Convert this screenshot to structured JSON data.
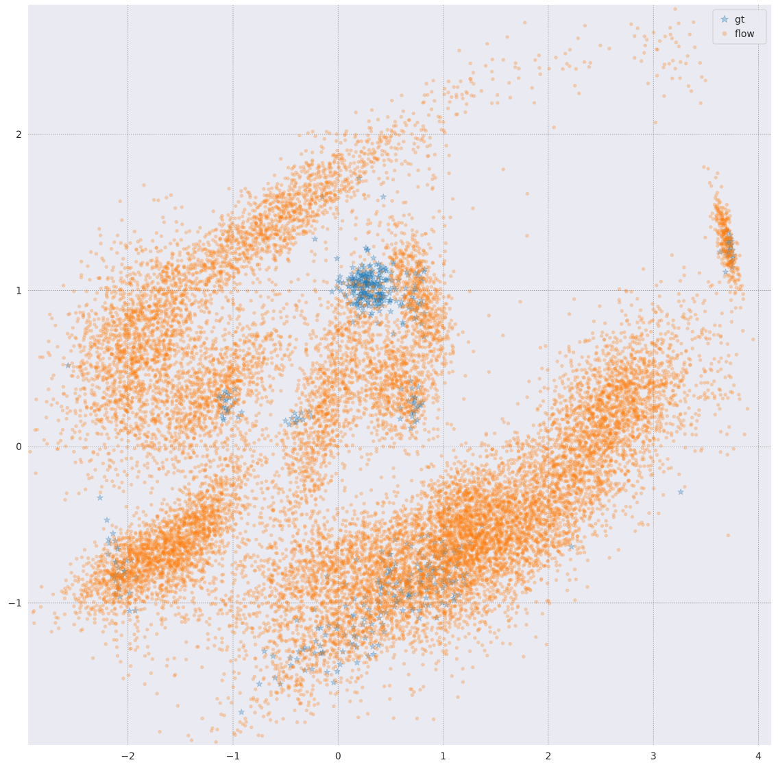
{
  "chart_data": {
    "type": "scatter",
    "title": "",
    "xlabel": "",
    "ylabel": "",
    "xlim": [
      -2.95,
      4.12
    ],
    "ylim": [
      -1.91,
      2.83
    ],
    "xticks": [
      -2,
      -1,
      0,
      1,
      2,
      3,
      4
    ],
    "yticks": [
      -1,
      0,
      1,
      2
    ],
    "xtick_labels": [
      "−2",
      "−1",
      "0",
      "1",
      "2",
      "3",
      "4"
    ],
    "ytick_labels": [
      "−1",
      "0",
      "1",
      "2"
    ],
    "grid": true,
    "legend_position": "top-right",
    "background": "#eaeaf2",
    "series": [
      {
        "name": "gt",
        "marker": "star",
        "color": "#1f77b4",
        "opacity": 0.3,
        "clusters": [
          {
            "center": [
              0.28,
              1.03
            ],
            "spread": [
              0.12,
              0.09
            ],
            "angle": 0,
            "count": 220
          },
          {
            "center": [
              0.72,
              0.95
            ],
            "spread": [
              0.08,
              0.12
            ],
            "angle": -0.3,
            "count": 40
          },
          {
            "center": [
              -1.05,
              0.27
            ],
            "spread": [
              0.06,
              0.05
            ],
            "angle": 0,
            "count": 25
          },
          {
            "center": [
              -0.38,
              0.18
            ],
            "spread": [
              0.05,
              0.04
            ],
            "angle": 0,
            "count": 12
          },
          {
            "center": [
              0.72,
              0.28
            ],
            "spread": [
              0.05,
              0.12
            ],
            "angle": 0,
            "count": 25
          },
          {
            "center": [
              0.55,
              -0.95
            ],
            "spread": [
              0.5,
              0.14
            ],
            "angle": 0.45,
            "count": 130
          },
          {
            "center": [
              0.95,
              -0.75
            ],
            "spread": [
              0.2,
              0.15
            ],
            "angle": 0.5,
            "count": 40
          },
          {
            "center": [
              -2.1,
              -0.75
            ],
            "spread": [
              0.05,
              0.15
            ],
            "angle": 0.3,
            "count": 30
          },
          {
            "center": [
              3.72,
              1.25
            ],
            "spread": [
              0.03,
              0.08
            ],
            "angle": 0,
            "count": 25
          },
          {
            "center": [
              -0.3,
              -1.32
            ],
            "spread": [
              0.2,
              0.05
            ],
            "angle": 0.3,
            "count": 12
          }
        ],
        "points": [
          [
            -2.57,
            0.52
          ],
          [
            -2.2,
            -0.47
          ],
          [
            -1.93,
            -1.05
          ],
          [
            -0.92,
            -1.7
          ],
          [
            -0.75,
            -1.52
          ],
          [
            -0.55,
            -1.52
          ],
          [
            -0.6,
            -1.48
          ],
          [
            3.26,
            -0.29
          ],
          [
            2.22,
            -0.64
          ],
          [
            0.15,
            -1.08
          ],
          [
            0.99,
            -1.0
          ],
          [
            1.1,
            -0.97
          ],
          [
            0.33,
            -1.28
          ],
          [
            -0.15,
            1.6
          ],
          [
            0.2,
            1.72
          ],
          [
            0.43,
            1.6
          ],
          [
            -0.45,
            -1.4
          ],
          [
            0.05,
            1.05
          ],
          [
            -0.22,
            1.33
          ]
        ]
      },
      {
        "name": "flow",
        "marker": "circle",
        "color": "#ff7f0e",
        "opacity": 0.3,
        "clusters": [
          {
            "center": [
              -0.65,
              1.42
            ],
            "spread": [
              0.75,
              0.12
            ],
            "angle": 0.44,
            "count": 1500
          },
          {
            "center": [
              -1.9,
              0.62
            ],
            "spread": [
              0.38,
              0.28
            ],
            "angle": 0.7,
            "count": 1800
          },
          {
            "center": [
              -1.15,
              0.35
            ],
            "spread": [
              0.4,
              0.14
            ],
            "angle": 0.6,
            "count": 900
          },
          {
            "center": [
              -0.1,
              0.28
            ],
            "spread": [
              0.5,
              0.15
            ],
            "angle": 1.1,
            "count": 1100
          },
          {
            "center": [
              0.55,
              0.38
            ],
            "spread": [
              0.2,
              0.18
            ],
            "angle": 0.5,
            "count": 700
          },
          {
            "center": [
              0.78,
              0.97
            ],
            "spread": [
              0.25,
              0.1
            ],
            "angle": -1.1,
            "count": 600
          },
          {
            "center": [
              -1.9,
              -0.75
            ],
            "spread": [
              0.35,
              0.12
            ],
            "angle": 0.4,
            "count": 1300
          },
          {
            "center": [
              -1.32,
              -0.52
            ],
            "spread": [
              0.35,
              0.14
            ],
            "angle": 0.75,
            "count": 1000
          },
          {
            "center": [
              0.4,
              -0.72
            ],
            "spread": [
              0.85,
              0.18
            ],
            "angle": 0.2,
            "count": 2600
          },
          {
            "center": [
              0.45,
              -1.05
            ],
            "spread": [
              0.75,
              0.14
            ],
            "angle": 0.42,
            "count": 1400
          },
          {
            "center": [
              1.2,
              -0.42
            ],
            "spread": [
              0.22,
              0.18
            ],
            "angle": 0.3,
            "count": 700
          },
          {
            "center": [
              1.85,
              -0.45
            ],
            "spread": [
              0.7,
              0.22
            ],
            "angle": 0.58,
            "count": 2600
          },
          {
            "center": [
              2.65,
              0.28
            ],
            "spread": [
              0.4,
              0.22
            ],
            "angle": 0.45,
            "count": 1500
          },
          {
            "center": [
              3.7,
              1.3
            ],
            "spread": [
              0.04,
              0.18
            ],
            "angle": 0.3,
            "count": 300
          },
          {
            "center": [
              1.0,
              2.15
            ],
            "spread": [
              0.3,
              0.12
            ],
            "angle": 0.6,
            "count": 40
          },
          {
            "center": [
              2.0,
              2.4
            ],
            "spread": [
              0.45,
              0.12
            ],
            "angle": 0.2,
            "count": 40
          },
          {
            "center": [
              3.15,
              2.45
            ],
            "spread": [
              0.2,
              0.15
            ],
            "angle": -0.5,
            "count": 40
          },
          {
            "center": [
              3.55,
              0.6
            ],
            "spread": [
              0.12,
              0.35
            ],
            "angle": 0.2,
            "count": 70
          },
          {
            "center": [
              -2.0,
              -1.3
            ],
            "spread": [
              0.15,
              0.15
            ],
            "angle": 0,
            "count": 20
          },
          {
            "center": [
              -0.7,
              -1.25
            ],
            "spread": [
              0.2,
              0.15
            ],
            "angle": 0,
            "count": 50
          },
          {
            "center": [
              -0.3,
              0.8
            ],
            "spread": [
              0.9,
              0.4
            ],
            "angle": 0,
            "count": 220
          },
          {
            "center": [
              0.9,
              1.6
            ],
            "spread": [
              0.1,
              0.4
            ],
            "angle": 0,
            "count": 40
          }
        ],
        "points": [
          [
            -1.84,
            -1.52
          ],
          [
            -1.78,
            -1.45
          ],
          [
            3.7,
            0.08
          ],
          [
            3.0,
            0.55
          ],
          [
            2.7,
            0.87
          ],
          [
            3.28,
            0.5
          ],
          [
            2.58,
            2.55
          ],
          [
            2.85,
            2.68
          ],
          [
            3.45,
            2.2
          ],
          [
            1.8,
            1.62
          ],
          [
            2.2,
            0.85
          ],
          [
            2.98,
            -0.12
          ],
          [
            2.9,
            -0.5
          ],
          [
            -2.5,
            -0.1
          ]
        ]
      }
    ]
  }
}
